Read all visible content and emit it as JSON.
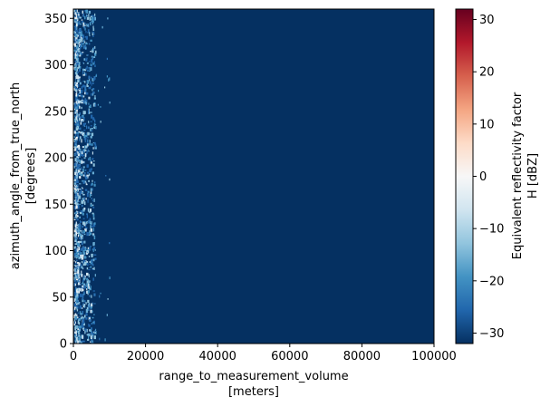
{
  "chart_data": {
    "type": "heatmap",
    "xlabel_line1": "range_to_measurement_volume",
    "xlabel_line2": "[meters]",
    "ylabel_line1": "azimuth_angle_from_true_north",
    "ylabel_line2": "[degrees]",
    "x_range": [
      0,
      100000
    ],
    "y_range": [
      0,
      360
    ],
    "x_ticks": [
      "0",
      "20000",
      "40000",
      "60000",
      "80000",
      "100000"
    ],
    "x_tick_values": [
      0,
      20000,
      40000,
      60000,
      80000,
      100000
    ],
    "y_ticks": [
      "0",
      "50",
      "100",
      "150",
      "200",
      "250",
      "300",
      "350"
    ],
    "y_tick_values": [
      0,
      50,
      100,
      150,
      200,
      250,
      300,
      350
    ],
    "background_value": -32,
    "echo_region_x_range": [
      0,
      10000
    ],
    "colorbar": {
      "label_line1": "Equivalent reflectivity factor",
      "label_line2": "H [dBZ]",
      "colormap": "RdBu_r",
      "range": [
        -32,
        32
      ],
      "ticks": [
        "−30",
        "−20",
        "−10",
        "0",
        "10",
        "20",
        "30"
      ],
      "tick_values": [
        -30,
        -20,
        -10,
        0,
        10,
        20,
        30
      ],
      "stops": [
        "#053061",
        "#2166ac",
        "#4393c3",
        "#92c5de",
        "#d1e5f0",
        "#f7f7f7",
        "#fddbc7",
        "#f4a582",
        "#d6604d",
        "#b2182b",
        "#67001f"
      ]
    }
  }
}
